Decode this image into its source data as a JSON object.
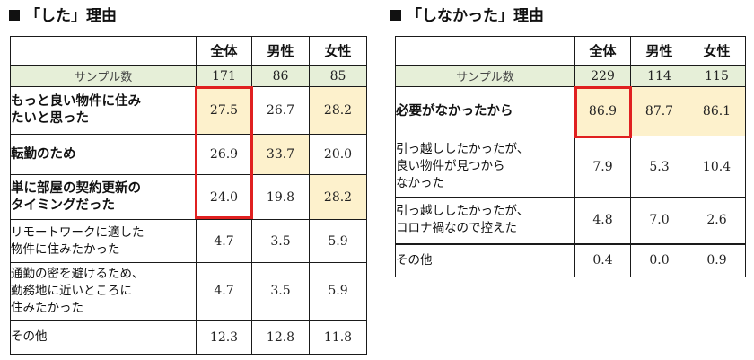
{
  "left": {
    "title": "「した」理由",
    "headers": [
      "全体",
      "男性",
      "女性"
    ],
    "sample": {
      "label": "サンプル数",
      "values": [
        "171",
        "86",
        "85"
      ]
    },
    "rows": [
      {
        "label_lines": [
          "もっと良い物件に住み",
          "たいと思った"
        ],
        "values": [
          "27.5",
          "26.7",
          "28.2"
        ]
      },
      {
        "label_lines": [
          "転勤のため"
        ],
        "values": [
          "26.9",
          "33.7",
          "20.0"
        ]
      },
      {
        "label_lines": [
          "単に部屋の契約更新の",
          "タイミングだった"
        ],
        "values": [
          "24.0",
          "19.8",
          "28.2"
        ]
      },
      {
        "label_lines": [
          "リモートワークに適した",
          "物件に住みたかった"
        ],
        "values": [
          "4.7",
          "3.5",
          "5.9"
        ]
      },
      {
        "label_lines": [
          "通勤の密を避けるため、",
          "勤務地に近いところに",
          "住みたかった"
        ],
        "values": [
          "4.7",
          "3.5",
          "5.9"
        ]
      },
      {
        "label_lines": [
          "その他"
        ],
        "values": [
          "12.3",
          "12.8",
          "11.8"
        ]
      }
    ]
  },
  "right": {
    "title": "「しなかった」理由",
    "headers": [
      "全体",
      "男性",
      "女性"
    ],
    "sample": {
      "label": "サンプル数",
      "values": [
        "229",
        "114",
        "115"
      ]
    },
    "rows": [
      {
        "label_lines": [
          "必要がなかったから"
        ],
        "values": [
          "86.9",
          "87.7",
          "86.1"
        ]
      },
      {
        "label_lines": [
          "引っ越ししたかったが、",
          "良い物件が見つから",
          "なかった"
        ],
        "values": [
          "7.9",
          "5.3",
          "10.4"
        ]
      },
      {
        "label_lines": [
          "引っ越ししたかったが、",
          "コロナ禍なので控えた"
        ],
        "values": [
          "4.8",
          "7.0",
          "2.6"
        ]
      },
      {
        "label_lines": [
          "その他"
        ],
        "values": [
          "0.4",
          "0.0",
          "0.9"
        ]
      }
    ]
  },
  "colors": {
    "highlight": "#fdf1cc",
    "sample_row": "#e6efd8",
    "red_box": "#e02020"
  }
}
